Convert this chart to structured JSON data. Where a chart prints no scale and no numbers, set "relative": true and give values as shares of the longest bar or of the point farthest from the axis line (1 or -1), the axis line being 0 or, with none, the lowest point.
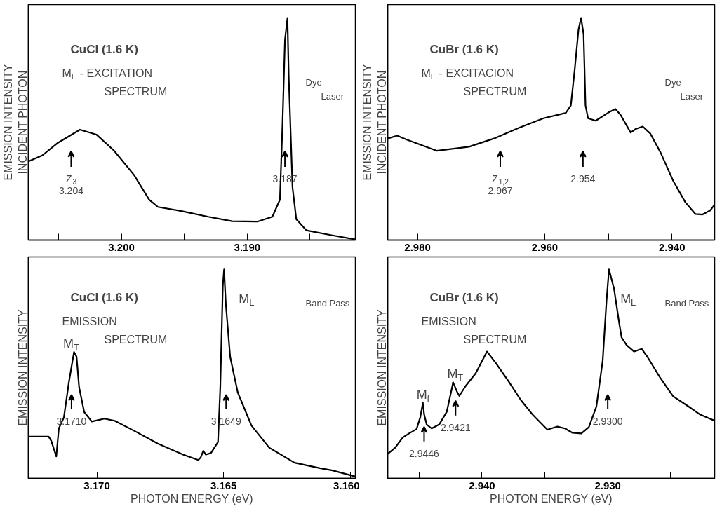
{
  "chart_data": [
    {
      "type": "line",
      "relative": true,
      "title": "CuCl (1.6 K)",
      "subtitle": "M$_{L}$ - EXCITATION\nSPECTRUM",
      "ylabel": "EMISSION INTENSITY\nINCIDENT PHOTON",
      "xlim": [
        3.2074,
        3.1814
      ],
      "xticks": [
        {
          "value": 3.205,
          "label": null
        },
        {
          "value": 3.2,
          "label": "3.200"
        },
        {
          "value": 3.195,
          "label": null
        },
        {
          "value": 3.19,
          "label": "3.190"
        },
        {
          "value": 3.185,
          "label": null
        }
      ],
      "series": [
        {
          "color": "#000000",
          "x": [
            3.2074,
            3.2063,
            3.2051,
            3.2033,
            3.202,
            3.2006,
            3.199,
            3.1978,
            3.1971,
            3.1951,
            3.1931,
            3.1912,
            3.1892,
            3.188,
            3.1874,
            3.1872,
            3.187,
            3.1868,
            3.1867,
            3.1864,
            3.1861,
            3.1853,
            3.1833,
            3.1814
          ],
          "values": [
            0.354,
            0.381,
            0.436,
            0.497,
            0.475,
            0.403,
            0.293,
            0.182,
            0.149,
            0.129,
            0.105,
            0.085,
            0.083,
            0.105,
            0.182,
            0.514,
            0.901,
            1.0,
            0.735,
            0.238,
            0.094,
            0.044,
            0.022,
            0.003
          ]
        }
      ],
      "annotations": [
        "Dye\nLaser",
        "Z$_{3}$\n3.204",
        "3.187"
      ]
    },
    {
      "type": "line",
      "relative": true,
      "title": "CuBr (1.6 K)",
      "subtitle": "M$_{L}$ - EXCITACION\nSPECTRUM",
      "ylabel": "EMISSION INTENSITY\nINCIDENT PHOTON",
      "xlim": [
        2.9847,
        2.9333
      ],
      "xticks": [
        {
          "value": 2.98,
          "label": "2.980"
        },
        {
          "value": 2.97,
          "label": null
        },
        {
          "value": 2.96,
          "label": "2.960"
        },
        {
          "value": 2.95,
          "label": null
        },
        {
          "value": 2.94,
          "label": "2.940"
        }
      ],
      "series": [
        {
          "color": "#000000",
          "x": [
            2.9847,
            2.9832,
            2.9817,
            2.977,
            2.9719,
            2.968,
            2.9641,
            2.9602,
            2.9567,
            2.9559,
            2.9553,
            2.9547,
            2.9543,
            2.9539,
            2.9536,
            2.9532,
            2.952,
            2.95,
            2.9489,
            2.9481,
            2.9465,
            2.9457,
            2.9446,
            2.9434,
            2.9418,
            2.9398,
            2.9379,
            2.9363,
            2.9352,
            2.934,
            2.9333
          ],
          "values": [
            0.457,
            0.47,
            0.452,
            0.402,
            0.42,
            0.457,
            0.505,
            0.548,
            0.572,
            0.606,
            0.766,
            0.947,
            1.0,
            0.926,
            0.606,
            0.548,
            0.537,
            0.574,
            0.59,
            0.564,
            0.484,
            0.5,
            0.511,
            0.479,
            0.394,
            0.266,
            0.17,
            0.117,
            0.115,
            0.133,
            0.16
          ]
        }
      ],
      "annotations": [
        "Dye\nLaser",
        "Z$_{1,2}$\n2.967",
        "2.954"
      ]
    },
    {
      "type": "line",
      "relative": true,
      "title": "CuCl (1.6 K)",
      "subtitle": "EMISSION\nSPECTRUM",
      "ylabel": "EMISSION INTENSITY",
      "xlabel": "PHOTON ENERGY (eV)",
      "xlim": [
        3.1727,
        3.1598
      ],
      "xticks": [
        {
          "value": 3.17,
          "label": "3.170"
        },
        {
          "value": 3.165,
          "label": "3.165"
        },
        {
          "value": 3.16,
          "label": "3.160"
        }
      ],
      "series": [
        {
          "color": "#000000",
          "x": [
            3.1727,
            3.1719,
            3.1718,
            3.1716,
            3.1715,
            3.1713,
            3.1711,
            3.1709,
            3.1708,
            3.1707,
            3.1705,
            3.1702,
            3.1697,
            3.1693,
            3.1685,
            3.1676,
            3.1666,
            3.166,
            3.1659,
            3.1658,
            3.1657,
            3.1655,
            3.16522,
            3.16513,
            3.16503,
            3.16498,
            3.16491,
            3.16474,
            3.16444,
            3.1639,
            3.1632,
            3.1622,
            3.1612,
            3.1607,
            3.1598
          ],
          "values": [
            0.2,
            0.2,
            0.18,
            0.105,
            0.239,
            0.292,
            0.463,
            0.605,
            0.582,
            0.437,
            0.318,
            0.272,
            0.286,
            0.276,
            0.226,
            0.167,
            0.114,
            0.088,
            0.101,
            0.132,
            0.114,
            0.121,
            0.174,
            0.437,
            0.924,
            1.0,
            0.832,
            0.582,
            0.411,
            0.253,
            0.147,
            0.075,
            0.049,
            0.038,
            0.009
          ]
        }
      ],
      "annotations": [
        "Band Pass",
        "3.1710",
        "M$_{T}$",
        "3.1649",
        "M$_{L}$"
      ]
    },
    {
      "type": "line",
      "relative": true,
      "title": "CuBr (1.6 K)",
      "subtitle": "EMISSION\nSPECTRUM",
      "ylabel": "EMISSION INTENSITY",
      "xlabel": "PHOTON ENERGY (eV)",
      "xlim": [
        2.9475,
        2.9215
      ],
      "xticks": [
        {
          "value": 2.945,
          "label": null
        },
        {
          "value": 2.94,
          "label": "2.940"
        },
        {
          "value": 2.935,
          "label": null
        },
        {
          "value": 2.93,
          "label": "2.930"
        },
        {
          "value": 2.925,
          "label": null
        }
      ],
      "series": [
        {
          "color": "#000000",
          "x": [
            2.9475,
            2.9469,
            2.9463,
            2.9458,
            2.9452,
            2.9449,
            2.9447,
            2.9446,
            2.9444,
            2.944,
            2.9434,
            2.9428,
            2.9424,
            2.9423,
            2.942,
            2.9418,
            2.9413,
            2.9405,
            2.9396,
            2.9389,
            2.9379,
            2.9369,
            2.936,
            2.9348,
            2.934,
            2.9334,
            2.9328,
            2.9321,
            2.9315,
            2.9309,
            2.9304,
            2.9301,
            2.9299,
            2.9295,
            2.9291,
            2.9289,
            2.9285,
            2.9279,
            2.9273,
            2.9268,
            2.9258,
            2.9248,
            2.9234,
            2.9227,
            2.9215
          ],
          "values": [
            0.117,
            0.147,
            0.196,
            0.215,
            0.236,
            0.294,
            0.362,
            0.307,
            0.258,
            0.239,
            0.258,
            0.319,
            0.429,
            0.46,
            0.417,
            0.395,
            0.442,
            0.503,
            0.607,
            0.552,
            0.466,
            0.374,
            0.307,
            0.233,
            0.248,
            0.239,
            0.218,
            0.215,
            0.245,
            0.344,
            0.564,
            0.847,
            1.0,
            0.908,
            0.748,
            0.675,
            0.638,
            0.607,
            0.62,
            0.577,
            0.479,
            0.393,
            0.337,
            0.307,
            0.276
          ]
        }
      ],
      "annotations": [
        "Band Pass",
        "2.9446",
        "M$_{f}$",
        "2.9421",
        "M$_{T}$",
        "2.9300",
        "M$_{L}$"
      ]
    }
  ]
}
